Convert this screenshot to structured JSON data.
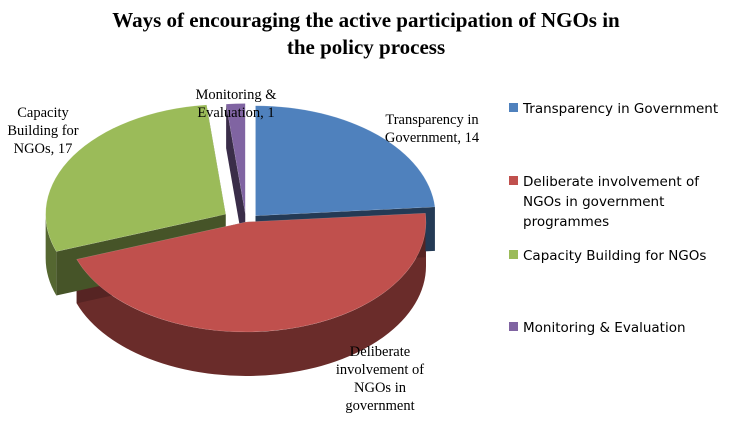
{
  "chart_data": {
    "type": "pie",
    "style": "3d-exploded",
    "title_lines": [
      "Ways of encouraging the active participation of NGOs in",
      "the policy process"
    ],
    "slices": [
      {
        "name": "Transparency in Government",
        "value": 14,
        "color": "#4F81BD",
        "data_label_lines": [
          "Transparency  in",
          "Government, 14"
        ],
        "legend_lines": [
          "Transparency in Government"
        ]
      },
      {
        "name": "Deliberate involvement of NGOs in government programmes",
        "value": 27,
        "color": "#C0504D",
        "data_label_lines": [
          "Deliberate",
          "involvement  of",
          "NGOs  in",
          "government"
        ],
        "legend_lines": [
          "Deliberate involvement of",
          "NGOs in government",
          "programmes"
        ]
      },
      {
        "name": "Capacity Building for NGOs",
        "value": 17,
        "color": "#9BBB59",
        "data_label_lines": [
          "Capacity",
          "Building  for",
          "NGOs, 17"
        ],
        "legend_lines": [
          "Capacity Building for NGOs"
        ]
      },
      {
        "name": "Monitoring & Evaluation",
        "value": 1,
        "color": "#8064A2",
        "data_label_lines": [
          "Monitoring  &",
          "Evaluation, 1"
        ],
        "legend_lines": [
          "Monitoring & Evaluation"
        ]
      }
    ],
    "legend_position": "right"
  }
}
